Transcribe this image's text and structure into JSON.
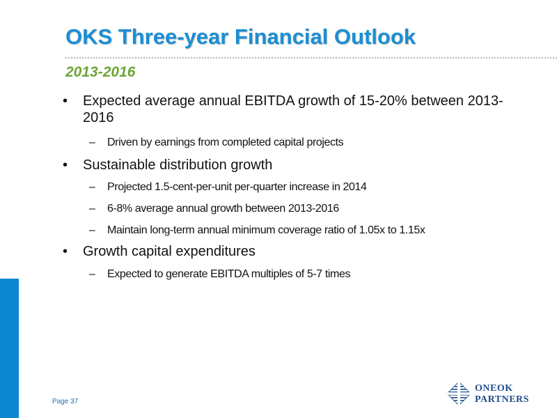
{
  "slide": {
    "title": "OKS Three-year Financial Outlook",
    "subtitle": "2013-2016",
    "bullets": [
      {
        "marker": "•",
        "text": "Expected average annual EBITDA growth of 15-20% between 2013-2016",
        "subs": [
          {
            "marker": "–",
            "text": "Driven by earnings from completed capital projects"
          }
        ]
      },
      {
        "marker": "•",
        "text": "Sustainable distribution growth",
        "subs": [
          {
            "marker": "–",
            "text": "Projected 1.5-cent-per-unit per-quarter increase in 2014"
          },
          {
            "marker": "–",
            "text": "6-8% average annual growth between 2013-2016"
          },
          {
            "marker": "–",
            "text": "Maintain long-term annual minimum coverage ratio of 1.05x to 1.15x"
          }
        ]
      },
      {
        "marker": "•",
        "text": "Growth capital expenditures",
        "subs": [
          {
            "marker": "–",
            "text": "Expected to generate EBITDA multiples of 5-7 times"
          }
        ]
      }
    ]
  },
  "footer": {
    "page_label": "Page 37",
    "logo_line1": "ONEOK",
    "logo_line2": "PARTNERS"
  },
  "colors": {
    "title": "#1a8fd6",
    "subtitle": "#6da534",
    "accent_bar": "#0c86d1",
    "logo": "#1f4e8c"
  }
}
